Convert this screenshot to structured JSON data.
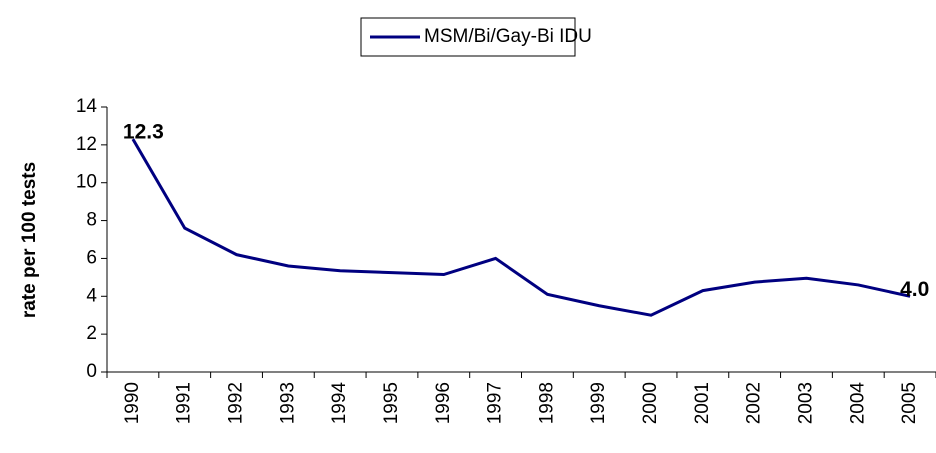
{
  "chart_data": {
    "type": "line",
    "y_label": "rate per 100 tests",
    "categories": [
      "1990",
      "1991",
      "1992",
      "1993",
      "1994",
      "1995",
      "1996",
      "1997",
      "1998",
      "1999",
      "2000",
      "2001",
      "2002",
      "2003",
      "2004",
      "2005"
    ],
    "series": [
      {
        "name": "MSM/Bi/Gay-Bi IDU",
        "color": "#000080",
        "values": [
          12.3,
          7.6,
          6.2,
          5.6,
          5.35,
          5.25,
          5.15,
          6.0,
          4.1,
          3.5,
          3.0,
          4.3,
          4.75,
          4.95,
          4.6,
          4.0
        ],
        "value_labels": [
          "12.3",
          null,
          null,
          null,
          null,
          null,
          null,
          null,
          null,
          null,
          null,
          null,
          null,
          null,
          null,
          "4.0"
        ]
      }
    ],
    "ylim": [
      0,
      14
    ],
    "yticks": [
      0,
      2,
      4,
      6,
      8,
      10,
      12,
      14
    ],
    "grid": false,
    "legend": "top"
  }
}
